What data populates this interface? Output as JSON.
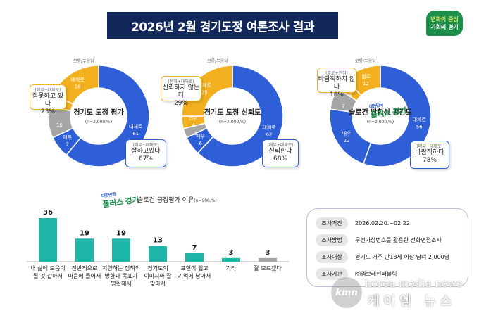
{
  "header": {
    "title": "2026년 2월 경기도정 여론조사 결과",
    "logo_line1": "변화의 중심",
    "logo_line2": "기회의 경기"
  },
  "colors": {
    "blue": "#2f5fd6",
    "yellow": "#f2b01e",
    "gray": "#a6a6a6",
    "teal": "#1fb5a8",
    "navy": "#12285a"
  },
  "chart_data": [
    {
      "type": "pie",
      "title": "경기도 도정 평가",
      "subtitle": "(n=2,000,%)",
      "slices": [
        {
          "label": "대체로",
          "value": 61,
          "group": "positive"
        },
        {
          "label": "매우",
          "value": 7,
          "group": "positive"
        },
        {
          "label": "모름/무응답",
          "value": 10,
          "group": "unknown"
        },
        {
          "label": "매우",
          "value": 4,
          "group": "negative"
        },
        {
          "label": "대체로",
          "value": 18,
          "group": "negative"
        }
      ],
      "callouts": {
        "positive": {
          "small": "(매우+대체로)",
          "text": "잘하고있다",
          "pct": "67%"
        },
        "negative": {
          "small": "(매우+대체로)",
          "text": "잘못하고 있다",
          "pct": "23%"
        },
        "unknown": "모름/무응답"
      }
    },
    {
      "type": "pie",
      "title": "경기도 도정 신뢰도",
      "subtitle": "(n=2,000,%)",
      "slices": [
        {
          "label": "대체로",
          "value": 62,
          "group": "positive"
        },
        {
          "label": "매우",
          "value": 6,
          "group": "positive"
        },
        {
          "label": "모름/무응답",
          "value": 3,
          "group": "unknown"
        },
        {
          "label": "전혀",
          "value": 4,
          "group": "negative"
        },
        {
          "label": "대체로",
          "value": 25,
          "group": "negative"
        }
      ],
      "callouts": {
        "positive": {
          "small": "(매우+대체로)",
          "text": "신뢰한다",
          "pct": "68%"
        },
        "negative": {
          "small": "(전혀+대체로)",
          "text": "신뢰하지 않는다",
          "pct": "29%"
        },
        "unknown": "모름/무응답"
      }
    },
    {
      "type": "pie",
      "title": "슬로건 방향성 공감도",
      "subtitle": "(n=2,000,%)",
      "slices": [
        {
          "label": "대체로",
          "value": 56,
          "group": "positive"
        },
        {
          "label": "매우",
          "value": 22,
          "group": "positive"
        },
        {
          "label": "모름/무응답",
          "value": 7,
          "group": "unknown"
        },
        {
          "label": "전혀",
          "value": 4,
          "group": "negative"
        },
        {
          "label": "별로",
          "value": 12,
          "group": "negative"
        }
      ],
      "callouts": {
        "positive": {
          "small": "(매우+대체로)",
          "text": "바람직하다",
          "pct": "78%"
        },
        "negative": {
          "small": "(별로+전혀)",
          "text": "바람직하지 않다",
          "pct": "16%"
        },
        "unknown": "모름/무응답"
      }
    },
    {
      "type": "bar",
      "title": "슬로건 긍정평가 이유",
      "subtitle": "(n=988,%)",
      "categories": [
        [
          "내 삶에 도움이",
          "될 것 같아서"
        ],
        [
          "전반적으로",
          "마음에 들어서"
        ],
        [
          "지향하는 정책의",
          "방향과 목표가",
          "명확해서"
        ],
        [
          "경기도의",
          "이미지와 잘",
          "맞아서"
        ],
        [
          "표현이 쉽고",
          "기억에 남아서"
        ],
        [
          "기타"
        ],
        [
          "잘 모르겠다"
        ]
      ],
      "values": [
        36,
        19,
        19,
        13,
        7,
        3,
        3
      ],
      "bar_colors": [
        "#1fb5a8",
        "#1fb5a8",
        "#1fb5a8",
        "#1fb5a8",
        "#1fb5a8",
        "#1fb5a8",
        "#a6a6a6"
      ]
    }
  ],
  "slogan_logo": {
    "top": "대한민국",
    "main": "플러스 경기"
  },
  "survey_info": [
    {
      "key": "조사기간",
      "value": "2026.02.20.~02.22."
    },
    {
      "key": "조사방법",
      "value": "무선가상번호를 활용한 전화면접조사"
    },
    {
      "key": "조사대상",
      "value": "경기도 거주 만18세 이상 남녀 2,000명"
    },
    {
      "key": "조사기관",
      "value": "㈜엠브레인퍼블릭"
    }
  ],
  "watermark": {
    "badge": "kmn",
    "url": "korea media news",
    "name": "케이엠 뉴스"
  }
}
